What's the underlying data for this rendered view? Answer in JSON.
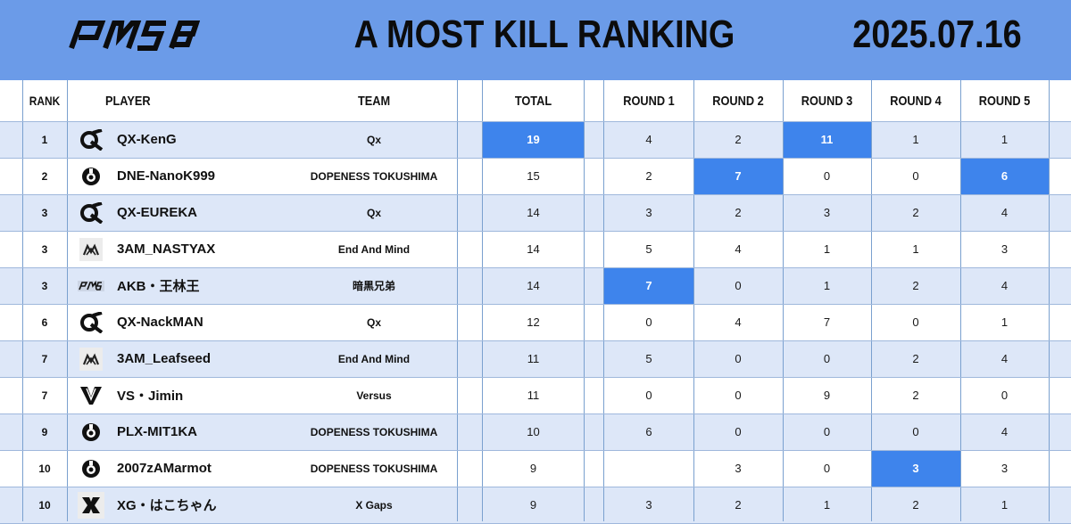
{
  "header": {
    "logo_text": "PMSB",
    "title": "A  MOST KILL RANKING",
    "date": "2025.07.16"
  },
  "columns": {
    "rank": "RANK",
    "player": "PLAYER",
    "team": "TEAM",
    "total": "TOTAL",
    "round1": "ROUND 1",
    "round2": "ROUND 2",
    "round3": "ROUND 3",
    "round4": "ROUND 4",
    "round5": "ROUND 5"
  },
  "colors": {
    "header_bg": "#6b9be8",
    "highlight": "#3e84ec",
    "stripe": "#dde7f8"
  },
  "rows": [
    {
      "rank": "1",
      "player": "QX-KenG",
      "team": "Qx",
      "logo": "qx-logo-icon",
      "total": "19",
      "r1": "4",
      "r2": "2",
      "r3": "11",
      "r4": "1",
      "r5": "1",
      "hl": [
        "total",
        "r3"
      ]
    },
    {
      "rank": "2",
      "player": "DNE-NanoK999",
      "team": "DOPENESS TOKUSHIMA",
      "logo": "dopeness-logo-icon",
      "total": "15",
      "r1": "2",
      "r2": "7",
      "r3": "0",
      "r4": "0",
      "r5": "6",
      "hl": [
        "r2",
        "r5"
      ]
    },
    {
      "rank": "3",
      "player": "QX-EUREKA",
      "team": "Qx",
      "logo": "qx-logo-icon",
      "total": "14",
      "r1": "3",
      "r2": "2",
      "r3": "3",
      "r4": "2",
      "r5": "4",
      "hl": []
    },
    {
      "rank": "3",
      "player": "3AM_NASTYAX",
      "team": "End And Mind",
      "logo": "end-and-mind-logo-icon",
      "total": "14",
      "r1": "5",
      "r2": "4",
      "r3": "1",
      "r4": "1",
      "r5": "3",
      "hl": []
    },
    {
      "rank": "3",
      "player": "AKB・王林王",
      "team": "暗黒兄弟",
      "logo": "pmsb-logo-icon",
      "total": "14",
      "r1": "7",
      "r2": "0",
      "r3": "1",
      "r4": "2",
      "r5": "4",
      "hl": [
        "r1"
      ]
    },
    {
      "rank": "6",
      "player": "QX-NackMAN",
      "team": "Qx",
      "logo": "qx-logo-icon",
      "total": "12",
      "r1": "0",
      "r2": "4",
      "r3": "7",
      "r4": "0",
      "r5": "1",
      "hl": []
    },
    {
      "rank": "7",
      "player": "3AM_Leafseed",
      "team": "End And Mind",
      "logo": "end-and-mind-logo-icon",
      "total": "11",
      "r1": "5",
      "r2": "0",
      "r3": "0",
      "r4": "2",
      "r5": "4",
      "hl": []
    },
    {
      "rank": "7",
      "player": "VS・Jimin",
      "team": "Versus",
      "logo": "versus-logo-icon",
      "total": "11",
      "r1": "0",
      "r2": "0",
      "r3": "9",
      "r4": "2",
      "r5": "0",
      "hl": []
    },
    {
      "rank": "9",
      "player": "PLX-MIT1KA",
      "team": "DOPENESS TOKUSHIMA",
      "logo": "dopeness-logo-icon",
      "total": "10",
      "r1": "6",
      "r2": "0",
      "r3": "0",
      "r4": "0",
      "r5": "4",
      "hl": []
    },
    {
      "rank": "10",
      "player": "2007zAMarmot",
      "team": "DOPENESS TOKUSHIMA",
      "logo": "dopeness-logo-icon",
      "total": "9",
      "r1": "",
      "r2": "3",
      "r3": "0",
      "r4": "3",
      "r5": "3",
      "hl": [
        "r4"
      ]
    },
    {
      "rank": "10",
      "player": "XG・はこちゃん",
      "team": "X Gaps",
      "logo": "x-gaps-logo-icon",
      "total": "9",
      "r1": "3",
      "r2": "2",
      "r3": "1",
      "r4": "2",
      "r5": "1",
      "hl": []
    }
  ]
}
